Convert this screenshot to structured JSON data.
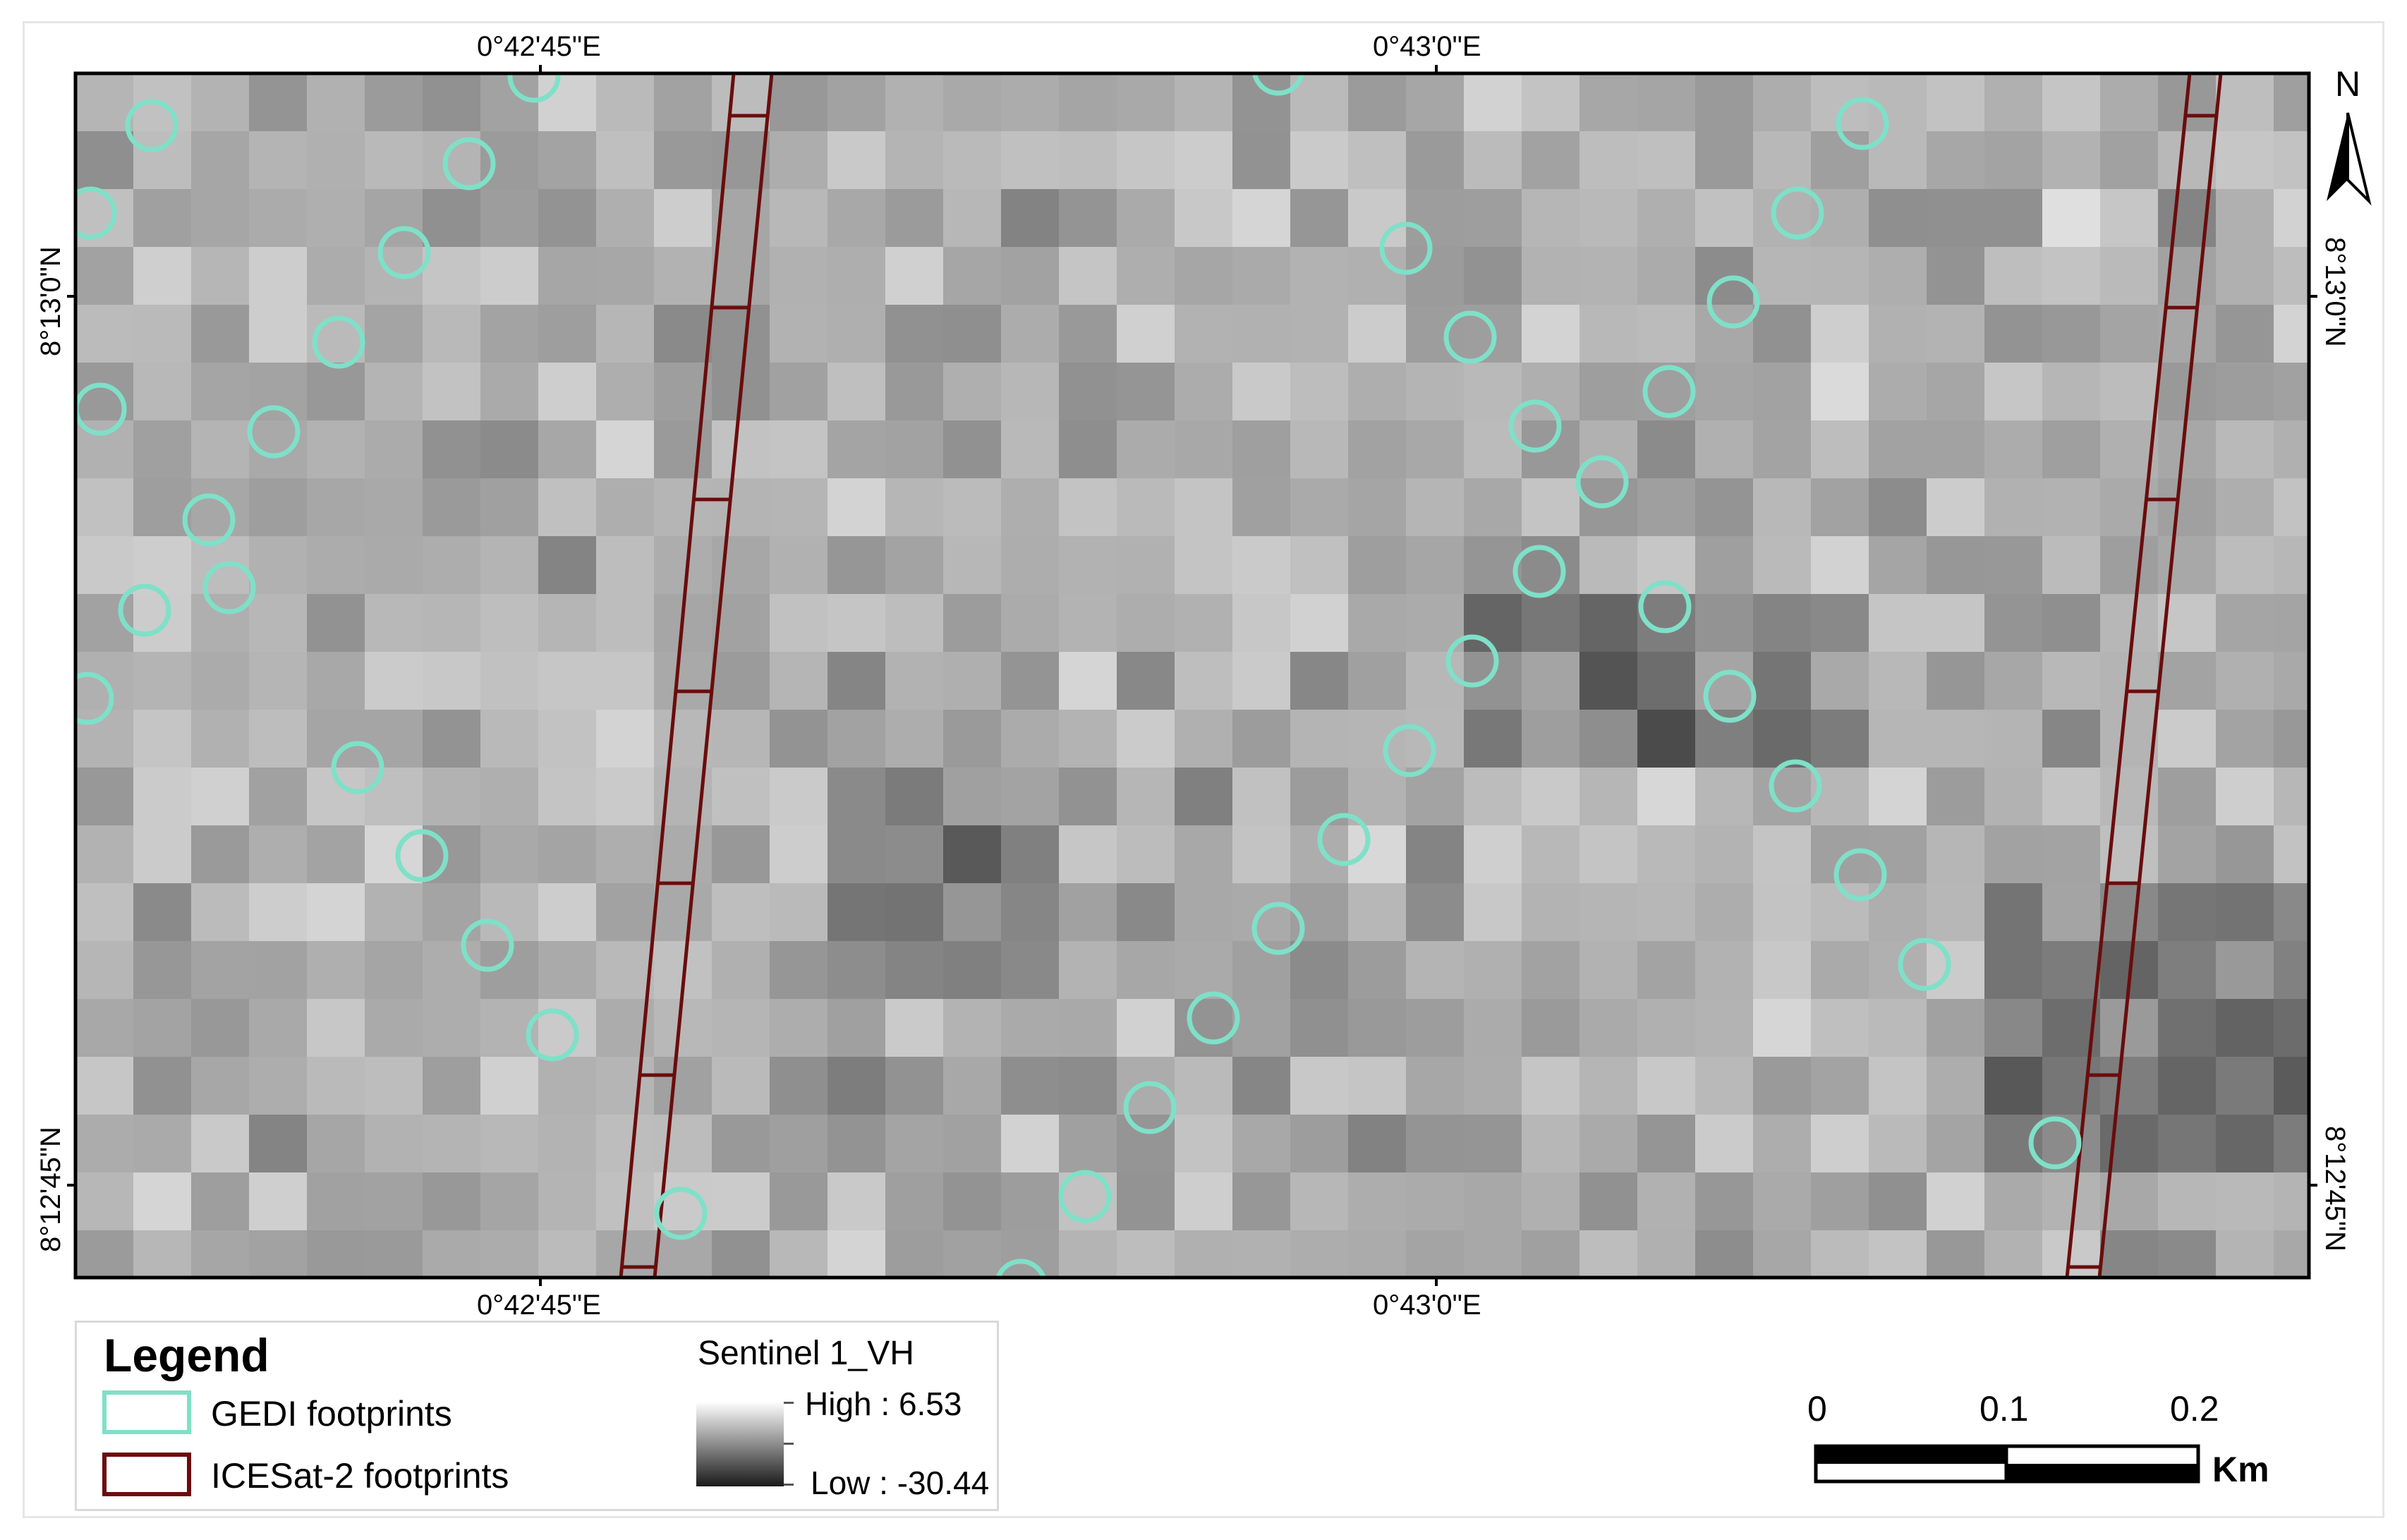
{
  "map": {
    "coord_labels": {
      "top_left_lon": "0°42'45\"E",
      "top_right_lon": "0°43'0\"E",
      "bottom_left_lon": "0°42'45\"E",
      "bottom_right_lon": "0°43'0\"E",
      "left_upper_lat": "8°13'0\"N",
      "left_lower_lat": "8°12'45\"N",
      "right_upper_lat": "8°13'0\"N",
      "right_lower_lat": "8°12'45\"N"
    },
    "raster": {
      "name": "Sentinel 1_VH",
      "high_label": "High : 6.53",
      "low_label": "Low : -30.44"
    },
    "layers": {
      "gedi_color": "#7fe0c8",
      "icesat_color": "#6b0c0c"
    }
  },
  "legend": {
    "title": "Legend",
    "gedi_label": "GEDI footprints",
    "icesat_label": "ICESat-2 footprints"
  },
  "scalebar": {
    "labels": [
      "0",
      "0.1",
      "0.2"
    ],
    "unit": "Km"
  },
  "north_arrow": {
    "label": "N",
    "icon": "north-arrow-icon"
  }
}
